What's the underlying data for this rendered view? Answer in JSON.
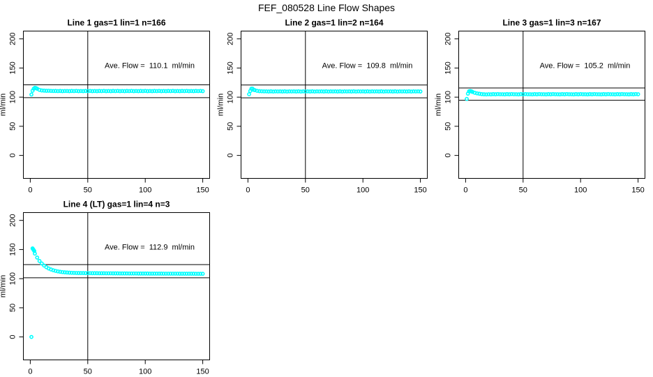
{
  "title": "FEF_080528  Line Flow Shapes",
  "marker_color": "#00ffff",
  "axis_color": "#000000",
  "chart_data": [
    {
      "type": "scatter",
      "title": "Line 1 gas=1 lin=1 n=166",
      "ylabel": "ml/min",
      "x_ticks": [
        0,
        50,
        100,
        150
      ],
      "y_ticks": [
        0,
        50,
        100,
        150,
        200
      ],
      "xlim": [
        0,
        150
      ],
      "ylim": [
        0,
        210
      ],
      "annotation": "Ave. Flow =  110.1  ml/min",
      "ave_flow": 110.1,
      "ref_lines": [
        121.1,
        99.1
      ],
      "vline": 50,
      "extra_points": [
        [
          1,
          104.5
        ],
        [
          3,
          114.5
        ],
        [
          5,
          115.5
        ]
      ],
      "x0": 2,
      "dx": 2,
      "y": [
        111.0,
        116.0,
        114.5,
        112.5,
        111.5,
        111.2,
        110.9,
        111.0,
        110.7,
        110.5,
        110.6,
        110.4,
        110.6,
        110.3,
        110.5,
        110.5,
        110.3,
        110.6,
        110.4,
        110.7,
        110.3,
        110.5,
        110.3,
        110.6,
        110.4,
        110.7,
        110.3,
        110.5,
        110.3,
        110.6,
        110.4,
        110.7,
        110.3,
        110.5,
        110.3,
        110.6,
        110.4,
        110.7,
        110.3,
        110.5,
        110.3,
        110.6,
        110.4,
        110.7,
        110.3,
        110.5,
        110.3,
        110.6,
        110.4,
        110.7,
        110.3,
        110.5,
        110.3,
        110.6,
        110.4,
        110.7,
        110.3,
        110.5,
        110.3,
        110.6,
        110.4,
        110.7,
        110.3,
        110.5,
        110.3,
        110.6,
        110.4,
        110.7,
        110.3,
        110.5,
        110.3,
        110.6,
        110.4,
        110.7,
        110.3
      ]
    },
    {
      "type": "scatter",
      "title": "Line 2 gas=1 lin=2 n=164",
      "ylabel": "ml/min",
      "x_ticks": [
        0,
        50,
        100,
        150
      ],
      "y_ticks": [
        0,
        50,
        100,
        150,
        200
      ],
      "xlim": [
        0,
        150
      ],
      "ylim": [
        0,
        210
      ],
      "annotation": "Ave. Flow =  109.8  ml/min",
      "ave_flow": 109.8,
      "ref_lines": [
        120.8,
        98.8
      ],
      "vline": 50,
      "extra_points": [
        [
          1,
          105.0
        ],
        [
          3,
          114.5
        ],
        [
          5,
          112.5
        ]
      ],
      "x0": 2,
      "dx": 2,
      "y": [
        110.5,
        114.5,
        112.0,
        110.8,
        110.3,
        110.1,
        109.9,
        109.9,
        109.7,
        110.0,
        109.6,
        109.9,
        109.8,
        109.9,
        109.7,
        110.0,
        109.6,
        109.9,
        109.8,
        109.9,
        109.7,
        110.0,
        109.6,
        109.9,
        109.8,
        109.9,
        109.7,
        110.0,
        109.6,
        109.9,
        109.8,
        109.9,
        109.7,
        110.0,
        109.6,
        109.9,
        109.8,
        109.9,
        109.7,
        110.0,
        109.6,
        109.9,
        109.8,
        109.9,
        109.7,
        110.0,
        109.6,
        109.9,
        109.8,
        109.9,
        109.7,
        110.0,
        109.6,
        109.9,
        109.8,
        109.9,
        109.7,
        110.0,
        109.6,
        109.9,
        109.8,
        109.9,
        109.7,
        110.0,
        109.6,
        109.9,
        109.8,
        109.9,
        109.7,
        110.0,
        109.6,
        109.9,
        109.8,
        109.9,
        109.7
      ]
    },
    {
      "type": "scatter",
      "title": "Line 3 gas=1 lin=3 n=167",
      "ylabel": "ml/min",
      "x_ticks": [
        0,
        50,
        100,
        150
      ],
      "y_ticks": [
        0,
        50,
        100,
        150,
        200
      ],
      "xlim": [
        0,
        150
      ],
      "ylim": [
        0,
        210
      ],
      "annotation": "Ave. Flow =  105.2  ml/min",
      "ave_flow": 105.2,
      "ref_lines": [
        115.7,
        94.7
      ],
      "vline": 50,
      "extra_points": [
        [
          1,
          97.0
        ],
        [
          3,
          110.0
        ],
        [
          5,
          110.0
        ]
      ],
      "x0": 2,
      "dx": 2,
      "y": [
        106.0,
        110.5,
        109.0,
        107.5,
        106.5,
        105.8,
        105.2,
        104.9,
        104.7,
        105.0,
        104.8,
        105.2,
        104.9,
        105.3,
        105.0,
        105.0,
        104.8,
        105.2,
        104.9,
        105.3,
        105.0,
        105.0,
        104.8,
        105.2,
        104.9,
        105.3,
        105.0,
        105.0,
        104.8,
        105.2,
        104.9,
        105.3,
        105.0,
        105.0,
        104.8,
        105.2,
        104.9,
        105.3,
        105.0,
        105.0,
        104.8,
        105.2,
        104.9,
        105.3,
        105.0,
        105.0,
        104.8,
        105.2,
        104.9,
        105.3,
        105.0,
        105.0,
        104.8,
        105.2,
        104.9,
        105.3,
        105.0,
        105.0,
        104.8,
        105.2,
        104.9,
        105.3,
        105.0,
        105.0,
        104.8,
        105.2,
        104.9,
        105.3,
        105.0,
        105.0,
        104.8,
        105.2,
        104.9,
        105.3,
        105.0
      ]
    },
    {
      "type": "scatter",
      "title": "Line 4 (LT) gas=1 lin=4 n=3",
      "ylabel": "ml/min",
      "x_ticks": [
        0,
        50,
        100,
        150
      ],
      "y_ticks": [
        0,
        50,
        100,
        150,
        200
      ],
      "xlim": [
        0,
        150
      ],
      "ylim": [
        0,
        210
      ],
      "annotation": "Ave. Flow =  112.9  ml/min",
      "ave_flow": 112.9,
      "ref_lines": [
        124.2,
        101.6
      ],
      "vline": 50,
      "extra_points": [
        [
          1,
          0.0
        ],
        [
          2.5,
          150.5
        ],
        [
          3,
          149.0
        ],
        [
          3.5,
          147.5
        ]
      ],
      "x0": 2,
      "dx": 2,
      "y": [
        152.0,
        143.0,
        136.2,
        130.4,
        126.0,
        122.5,
        119.7,
        117.5,
        115.8,
        114.4,
        113.4,
        112.5,
        111.8,
        111.3,
        110.9,
        110.6,
        110.3,
        110.1,
        109.9,
        109.8,
        109.7,
        109.6,
        109.6,
        109.5,
        109.5,
        109.5,
        109.4,
        109.4,
        109.4,
        109.3,
        109.3,
        109.3,
        109.2,
        109.2,
        109.2,
        109.1,
        109.1,
        109.1,
        109.0,
        109.0,
        109.0,
        109.0,
        108.9,
        108.9,
        108.9,
        108.9,
        108.8,
        108.8,
        108.8,
        108.8,
        108.8,
        108.7,
        108.7,
        108.7,
        108.7,
        108.7,
        108.7,
        108.6,
        108.6,
        108.6,
        108.6,
        108.6,
        108.6,
        108.6,
        108.5,
        108.5,
        108.5,
        108.5,
        108.5,
        108.5,
        108.5,
        108.4,
        108.4,
        108.4,
        108.4
      ]
    }
  ]
}
